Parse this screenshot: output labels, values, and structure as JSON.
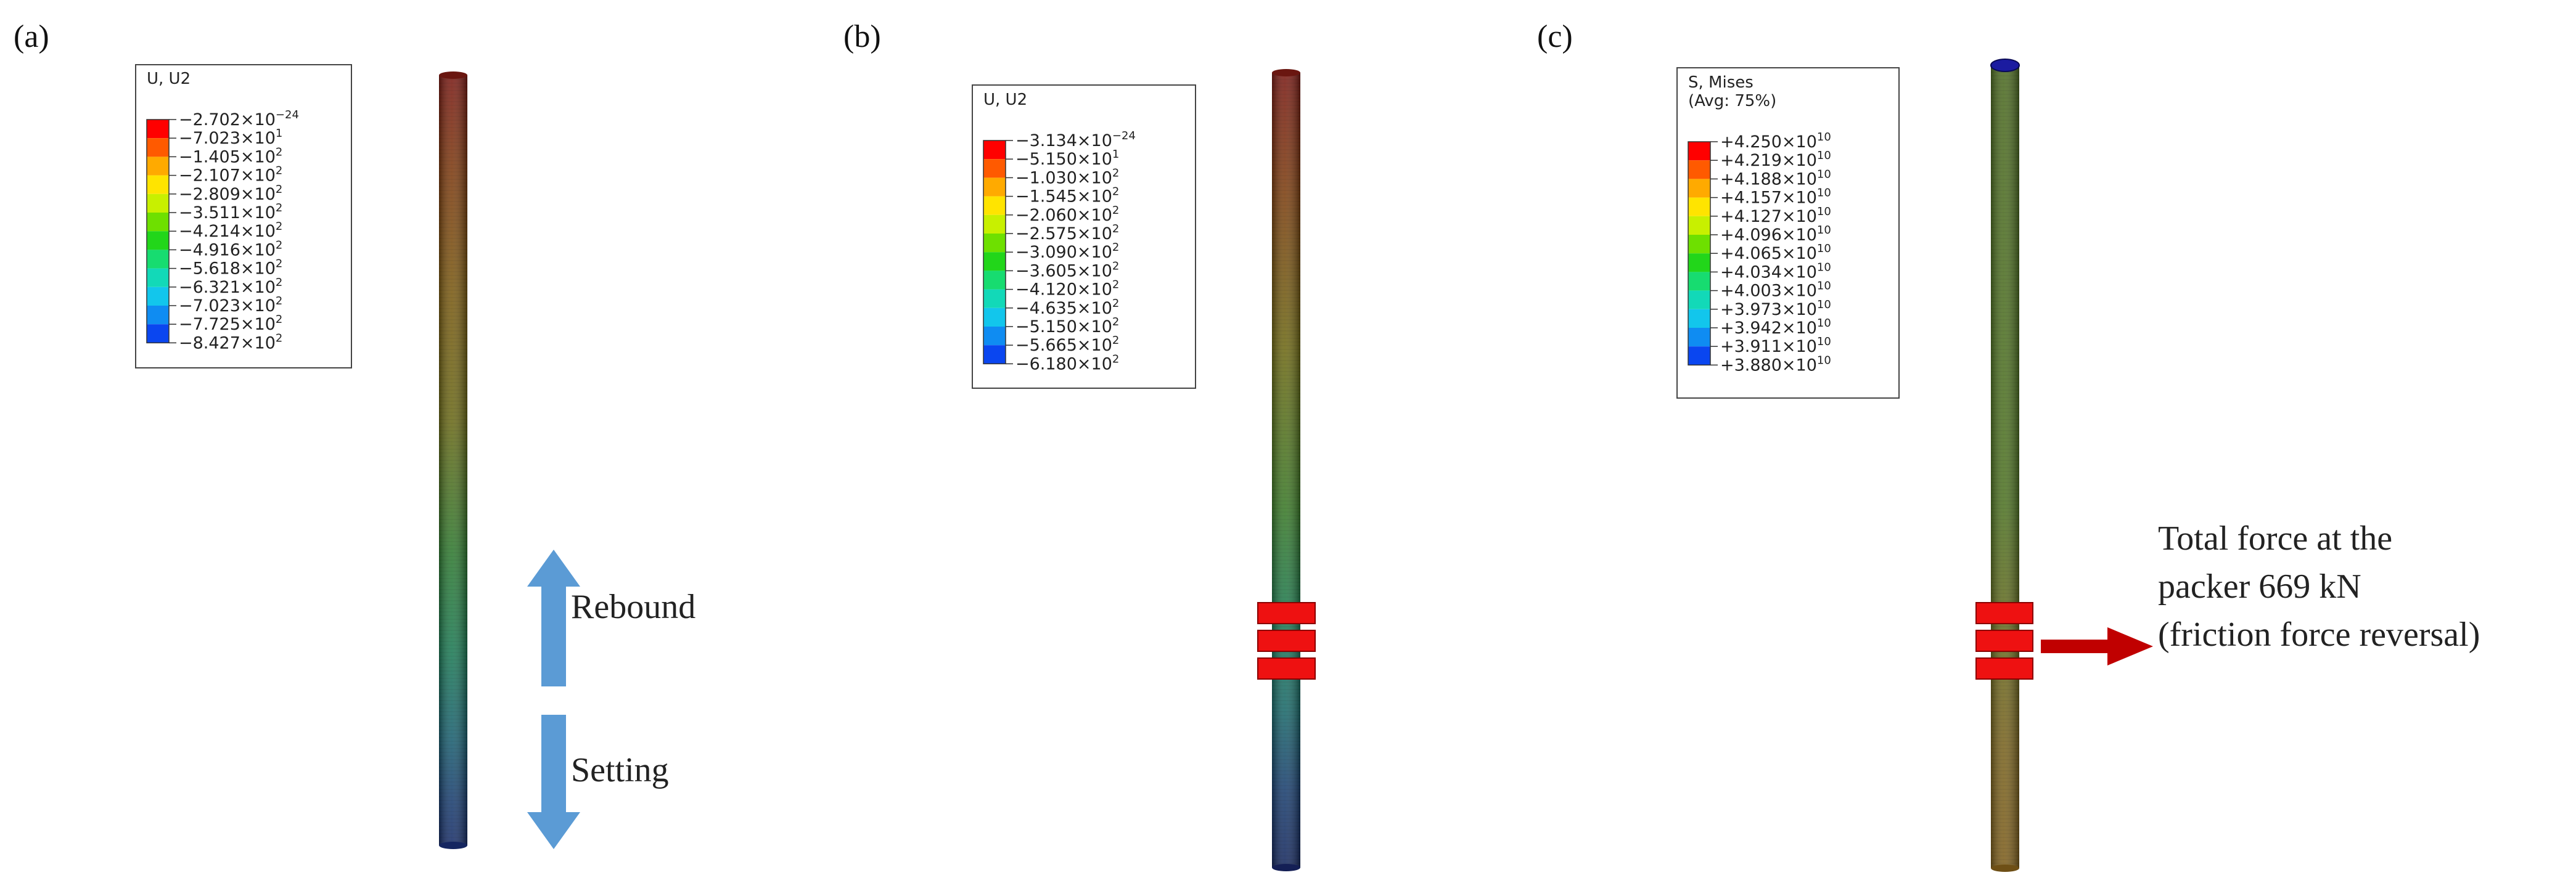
{
  "panels": [
    {
      "label": "(a)",
      "legend": {
        "title_lines": [
          "U, U2"
        ],
        "entries": [
          {
            "m": "−2.702",
            "e": "−24"
          },
          {
            "m": "−7.023",
            "e": "1"
          },
          {
            "m": "−1.405",
            "e": "2"
          },
          {
            "m": "−2.107",
            "e": "2"
          },
          {
            "m": "−2.809",
            "e": "2"
          },
          {
            "m": "−3.511",
            "e": "2"
          },
          {
            "m": "−4.214",
            "e": "2"
          },
          {
            "m": "−4.916",
            "e": "2"
          },
          {
            "m": "−5.618",
            "e": "2"
          },
          {
            "m": "−6.321",
            "e": "2"
          },
          {
            "m": "−7.023",
            "e": "2"
          },
          {
            "m": "−7.725",
            "e": "2"
          },
          {
            "m": "−8.427",
            "e": "2"
          }
        ]
      },
      "arrows": {
        "up_label": "Rebound",
        "down_label": "Setting"
      }
    },
    {
      "label": "(b)",
      "legend": {
        "title_lines": [
          "U, U2"
        ],
        "entries": [
          {
            "m": "−3.134",
            "e": "−24"
          },
          {
            "m": "−5.150",
            "e": "1"
          },
          {
            "m": "−1.030",
            "e": "2"
          },
          {
            "m": "−1.545",
            "e": "2"
          },
          {
            "m": "−2.060",
            "e": "2"
          },
          {
            "m": "−2.575",
            "e": "2"
          },
          {
            "m": "−3.090",
            "e": "2"
          },
          {
            "m": "−3.605",
            "e": "2"
          },
          {
            "m": "−4.120",
            "e": "2"
          },
          {
            "m": "−4.635",
            "e": "2"
          },
          {
            "m": "−5.150",
            "e": "2"
          },
          {
            "m": "−5.665",
            "e": "2"
          },
          {
            "m": "−6.180",
            "e": "2"
          }
        ]
      }
    },
    {
      "label": "(c)",
      "legend": {
        "title_lines": [
          "S, Mises",
          "(Avg: 75%)"
        ],
        "entries": [
          {
            "m": "+4.250",
            "e": "10"
          },
          {
            "m": "+4.219",
            "e": "10"
          },
          {
            "m": "+4.188",
            "e": "10"
          },
          {
            "m": "+4.157",
            "e": "10"
          },
          {
            "m": "+4.127",
            "e": "10"
          },
          {
            "m": "+4.096",
            "e": "10"
          },
          {
            "m": "+4.065",
            "e": "10"
          },
          {
            "m": "+4.034",
            "e": "10"
          },
          {
            "m": "+4.003",
            "e": "10"
          },
          {
            "m": "+3.973",
            "e": "10"
          },
          {
            "m": "+3.942",
            "e": "10"
          },
          {
            "m": "+3.911",
            "e": "10"
          },
          {
            "m": "+3.880",
            "e": "10"
          }
        ]
      },
      "annotation_lines": [
        "Total force at the",
        "packer 669 kN",
        "(friction force reversal)"
      ]
    }
  ],
  "colors": {
    "legend_bands": [
      "#ff0000",
      "#ff5a00",
      "#ffaa00",
      "#ffe400",
      "#c8f000",
      "#6ee000",
      "#22d61a",
      "#17dc70",
      "#12d9b8",
      "#12c6ec",
      "#0f8cf2",
      "#0a46f0",
      "#0000e6"
    ],
    "packer": "#ee1111",
    "blue_arrow": "#5b9bd5",
    "red_arrow": "#c00000"
  }
}
